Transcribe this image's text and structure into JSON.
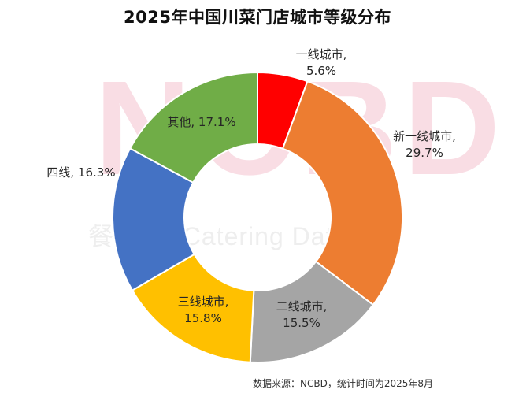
{
  "chart_data": {
    "type": "pie",
    "title": "2025年中国川菜门店城市等级分布",
    "categories": [
      "一线城市",
      "新一线城市",
      "二线城市",
      "三线城市",
      "四线",
      "其他"
    ],
    "values": [
      5.6,
      29.7,
      15.5,
      15.8,
      16.3,
      17.1
    ],
    "unit": "%",
    "donut": true,
    "data_labels": [
      "一线城市,\n5.6%",
      "新一线城市,\n29.7%",
      "二线城市,\n15.5%",
      "三线城市,\n15.8%",
      "四线, 16.3%",
      "其他, 17.1%"
    ],
    "colors": [
      "#ff0000",
      "#ed7d31",
      "#a5a5a5",
      "#ffc000",
      "#4472c4",
      "#70ad47"
    ],
    "legend": "none"
  },
  "source_note": "数据来源：NCBD，统计时间为2025年8月",
  "watermark": {
    "big": "NCBD",
    "sub": "餐 New Catering Data"
  }
}
